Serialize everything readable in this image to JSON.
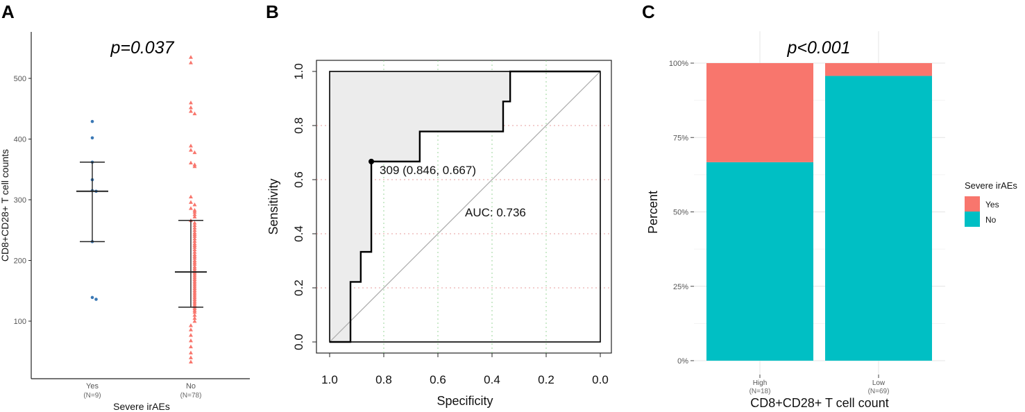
{
  "panels": {
    "a_label": "A",
    "b_label": "B",
    "c_label": "C"
  },
  "colors": {
    "yes_red": "#F8766D",
    "no_teal": "#00BFC4",
    "yes_blue": "#3A78B5",
    "roc_fill": "#ececec"
  },
  "chart_data": [
    {
      "type": "scatter",
      "title": "p=0.037",
      "xlabel": "Severe irAEs",
      "ylabel": "CD8+CD28+ T cell counts",
      "ylim": [
        0,
        560
      ],
      "y_ticks": [
        "100",
        "200",
        "300",
        "400",
        "500"
      ],
      "groups": [
        {
          "name": "Yes",
          "n_label": "(N=9)",
          "mean": 314,
          "err_upper": 362,
          "err_lower": 231,
          "points": [
            429,
            402,
            362,
            333,
            315,
            314,
            231,
            139,
            136
          ]
        },
        {
          "name": "No",
          "n_label": "(N=78)",
          "mean": 181,
          "err_upper": 266,
          "err_lower": 123,
          "points": [
            535,
            526,
            460,
            452,
            446,
            442,
            389,
            382,
            378,
            361,
            358,
            355,
            305,
            296,
            292,
            286,
            283,
            280,
            276,
            272,
            266,
            262,
            258,
            254,
            250,
            246,
            243,
            240,
            236,
            232,
            228,
            225,
            222,
            218,
            214,
            210,
            207,
            204,
            200,
            197,
            194,
            190,
            187,
            184,
            181,
            178,
            175,
            172,
            169,
            166,
            163,
            160,
            157,
            154,
            151,
            148,
            145,
            142,
            139,
            136,
            133,
            130,
            127,
            124,
            121,
            118,
            115,
            110,
            105,
            100,
            93,
            86,
            77,
            68,
            58,
            48,
            40,
            33
          ]
        }
      ]
    },
    {
      "type": "line",
      "title": "",
      "xlabel": "Specificity",
      "ylabel": "Sensitivity",
      "xlim": [
        1.0,
        0.0
      ],
      "ylim": [
        0.0,
        1.0
      ],
      "x_ticks": [
        "1.0",
        "0.8",
        "0.6",
        "0.4",
        "0.2",
        "0.0"
      ],
      "y_ticks": [
        "0.0",
        "0.2",
        "0.4",
        "0.6",
        "0.8",
        "1.0"
      ],
      "roc_points": [
        [
          1.0,
          0.0
        ],
        [
          0.923,
          0.0
        ],
        [
          0.923,
          0.222
        ],
        [
          0.885,
          0.222
        ],
        [
          0.885,
          0.333
        ],
        [
          0.846,
          0.333
        ],
        [
          0.846,
          0.667
        ],
        [
          0.667,
          0.667
        ],
        [
          0.667,
          0.778
        ],
        [
          0.359,
          0.778
        ],
        [
          0.359,
          0.889
        ],
        [
          0.333,
          0.889
        ],
        [
          0.333,
          1.0
        ],
        [
          0.0,
          1.0
        ]
      ],
      "threshold_point": [
        0.846,
        0.667
      ],
      "threshold_label": "309 (0.846, 0.667)",
      "auc_label": "AUC: 0.736"
    },
    {
      "type": "bar",
      "title": "p<0.001",
      "xlabel": "CD8+CD28+ T cell count",
      "ylabel": "Percent",
      "ylim": [
        0,
        100
      ],
      "y_ticks": [
        "0%",
        "25%",
        "50%",
        "75%",
        "100%"
      ],
      "categories": [
        "High",
        "Low"
      ],
      "n_labels": [
        "(N=18)",
        "(N=69)"
      ],
      "series": [
        {
          "name": "No",
          "values": [
            66.7,
            95.7
          ]
        },
        {
          "name": "Yes",
          "values": [
            33.3,
            4.3
          ]
        }
      ],
      "legend_title": "Severe irAEs",
      "legend_entries": [
        "Yes",
        "No"
      ],
      "legend_position": "right"
    }
  ]
}
